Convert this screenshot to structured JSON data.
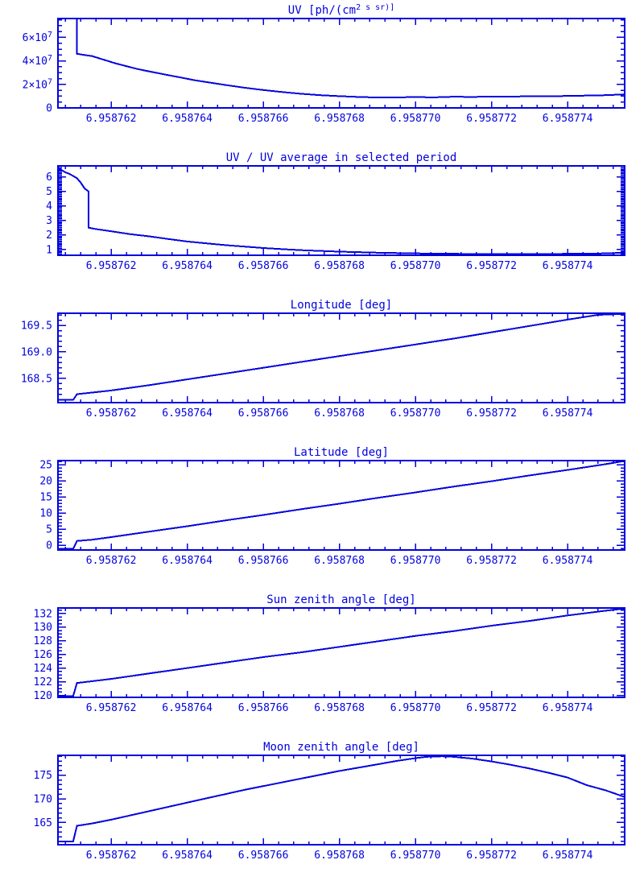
{
  "accent_color": "#0202dd",
  "background_color": "#ffffff",
  "chart_data": {
    "type": "multi-panel-line",
    "grid": false,
    "legend": "none",
    "x_axis": {
      "range": [
        6.9587606,
        6.9587755
      ],
      "minor_step": 4e-07,
      "ticks": [
        {
          "v": 6.958762,
          "label": "6.958762"
        },
        {
          "v": 6.958764,
          "label": "6.958764"
        },
        {
          "v": 6.958766,
          "label": "6.958766"
        },
        {
          "v": 6.958768,
          "label": "6.958768"
        },
        {
          "v": 6.95877,
          "label": "6.958770"
        },
        {
          "v": 6.958772,
          "label": "6.958772"
        },
        {
          "v": 6.958774,
          "label": "6.958774"
        }
      ]
    },
    "panels": [
      {
        "title": "UV [ph/(cm^2 s sr)]",
        "y_range": [
          0,
          76000000.0
        ],
        "y_minor_step": 5000000.0,
        "y_ticks": [
          {
            "v": 0,
            "label": "0"
          },
          {
            "v": 20000000.0,
            "label": "2×10^7"
          },
          {
            "v": 40000000.0,
            "label": "4×10^7"
          },
          {
            "v": 60000000.0,
            "label": "6×10^7"
          }
        ],
        "points": [
          [
            6.9587611,
            76000000.0
          ],
          [
            6.9587611,
            46000000.0
          ],
          [
            6.9587613,
            45000000.0
          ],
          [
            6.9587615,
            44000000.0
          ],
          [
            6.9587618,
            41000000.0
          ],
          [
            6.9587621,
            38000000.0
          ],
          [
            6.9587624,
            35500000.0
          ],
          [
            6.9587627,
            33000000.0
          ],
          [
            6.958763,
            31000000.0
          ],
          [
            6.9587634,
            28500000.0
          ],
          [
            6.9587638,
            26000000.0
          ],
          [
            6.9587642,
            23500000.0
          ],
          [
            6.9587646,
            21500000.0
          ],
          [
            6.958765,
            19500000.0
          ],
          [
            6.9587655,
            17200000.0
          ],
          [
            6.958766,
            15200000.0
          ],
          [
            6.9587665,
            13500000.0
          ],
          [
            6.958767,
            12000000.0
          ],
          [
            6.9587675,
            10800000.0
          ],
          [
            6.958768,
            10000000.0
          ],
          [
            6.9587685,
            9300000.0
          ],
          [
            6.958769,
            8800000.0
          ],
          [
            6.9587695,
            9000000.0
          ],
          [
            6.95877,
            9200000.0
          ],
          [
            6.9587705,
            9000000.0
          ],
          [
            6.958771,
            9500000.0
          ],
          [
            6.9587715,
            9300000.0
          ],
          [
            6.958772,
            9700000.0
          ],
          [
            6.9587725,
            9500000.0
          ],
          [
            6.958773,
            10000000.0
          ],
          [
            6.9587735,
            9800000.0
          ],
          [
            6.958774,
            10200000.0
          ],
          [
            6.9587745,
            10500000.0
          ],
          [
            6.958775,
            10800000.0
          ],
          [
            6.9587755,
            11500000.0
          ]
        ]
      },
      {
        "title": "UV / UV average in selected period",
        "y_range": [
          0.6,
          6.75
        ],
        "y_minor_step": 0.1,
        "y_ticks": [
          {
            "v": 1,
            "label": "1"
          },
          {
            "v": 2,
            "label": "2"
          },
          {
            "v": 3,
            "label": "3"
          },
          {
            "v": 4,
            "label": "4"
          },
          {
            "v": 5,
            "label": "5"
          },
          {
            "v": 6,
            "label": "6"
          }
        ],
        "points": [
          [
            6.9587606,
            6.6
          ],
          [
            6.9587607,
            6.45
          ],
          [
            6.9587608,
            6.3
          ],
          [
            6.9587609,
            6.2
          ],
          [
            6.958761,
            6.05
          ],
          [
            6.9587611,
            5.9
          ],
          [
            6.9587612,
            5.6
          ],
          [
            6.9587613,
            5.2
          ],
          [
            6.9587614,
            5.0
          ],
          [
            6.9587614,
            2.5
          ],
          [
            6.9587616,
            2.4
          ],
          [
            6.958762,
            2.25
          ],
          [
            6.9587625,
            2.05
          ],
          [
            6.958763,
            1.9
          ],
          [
            6.9587635,
            1.72
          ],
          [
            6.958764,
            1.55
          ],
          [
            6.9587645,
            1.42
          ],
          [
            6.958765,
            1.3
          ],
          [
            6.9587655,
            1.2
          ],
          [
            6.958766,
            1.1
          ],
          [
            6.9587665,
            1.02
          ],
          [
            6.958767,
            0.95
          ],
          [
            6.9587675,
            0.9
          ],
          [
            6.958768,
            0.85
          ],
          [
            6.958769,
            0.78
          ],
          [
            6.95877,
            0.73
          ],
          [
            6.958771,
            0.7
          ],
          [
            6.958772,
            0.68
          ],
          [
            6.958773,
            0.68
          ],
          [
            6.958774,
            0.7
          ],
          [
            6.958775,
            0.73
          ],
          [
            6.9587755,
            0.78
          ]
        ]
      },
      {
        "title": "Longitude [deg]",
        "y_range": [
          168.04,
          169.73
        ],
        "y_minor_step": 0.1,
        "y_ticks": [
          {
            "v": 168.5,
            "label": "168.5"
          },
          {
            "v": 169.0,
            "label": "169.0"
          },
          {
            "v": 169.5,
            "label": "169.5"
          }
        ],
        "points": [
          [
            6.9587606,
            168.09
          ],
          [
            6.958761,
            168.09
          ],
          [
            6.9587611,
            168.2
          ],
          [
            6.9587615,
            168.23
          ],
          [
            6.958762,
            168.27
          ],
          [
            6.958763,
            168.37
          ],
          [
            6.958764,
            168.48
          ],
          [
            6.958765,
            168.59
          ],
          [
            6.958766,
            168.7
          ],
          [
            6.958767,
            168.81
          ],
          [
            6.958768,
            168.92
          ],
          [
            6.958769,
            169.03
          ],
          [
            6.95877,
            169.14
          ],
          [
            6.958771,
            169.25
          ],
          [
            6.958772,
            169.37
          ],
          [
            6.958773,
            169.49
          ],
          [
            6.958774,
            169.61
          ],
          [
            6.9587748,
            169.7
          ],
          [
            6.9587755,
            169.72
          ]
        ]
      },
      {
        "title": "Latitude [deg]",
        "y_range": [
          -1.5,
          26.3
        ],
        "y_minor_step": 1,
        "y_ticks": [
          {
            "v": 0,
            "label": "0"
          },
          {
            "v": 5,
            "label": "5"
          },
          {
            "v": 10,
            "label": "10"
          },
          {
            "v": 15,
            "label": "15"
          },
          {
            "v": 20,
            "label": "20"
          },
          {
            "v": 25,
            "label": "25"
          }
        ],
        "points": [
          [
            6.9587606,
            -1.1
          ],
          [
            6.958761,
            -1.1
          ],
          [
            6.9587611,
            1.3
          ],
          [
            6.9587615,
            1.7
          ],
          [
            6.958762,
            2.5
          ],
          [
            6.958763,
            4.2
          ],
          [
            6.958764,
            5.9
          ],
          [
            6.958765,
            7.7
          ],
          [
            6.958766,
            9.4
          ],
          [
            6.958767,
            11.2
          ],
          [
            6.958768,
            12.9
          ],
          [
            6.958769,
            14.7
          ],
          [
            6.95877,
            16.4
          ],
          [
            6.958771,
            18.2
          ],
          [
            6.958772,
            19.9
          ],
          [
            6.958773,
            21.7
          ],
          [
            6.958774,
            23.4
          ],
          [
            6.958775,
            25.2
          ],
          [
            6.9587755,
            26.2
          ]
        ]
      },
      {
        "title": "Sun zenith angle [deg]",
        "y_range": [
          119.7,
          132.8
        ],
        "y_minor_step": 0.5,
        "y_ticks": [
          {
            "v": 120,
            "label": "120"
          },
          {
            "v": 122,
            "label": "122"
          },
          {
            "v": 124,
            "label": "124"
          },
          {
            "v": 126,
            "label": "126"
          },
          {
            "v": 128,
            "label": "128"
          },
          {
            "v": 130,
            "label": "130"
          },
          {
            "v": 132,
            "label": "132"
          }
        ],
        "points": [
          [
            6.9587606,
            119.9
          ],
          [
            6.958761,
            119.9
          ],
          [
            6.9587611,
            121.8
          ],
          [
            6.958762,
            122.4
          ],
          [
            6.958763,
            123.2
          ],
          [
            6.958764,
            124.0
          ],
          [
            6.958765,
            124.8
          ],
          [
            6.958766,
            125.6
          ],
          [
            6.958767,
            126.3
          ],
          [
            6.958768,
            127.1
          ],
          [
            6.958769,
            127.9
          ],
          [
            6.95877,
            128.7
          ],
          [
            6.958771,
            129.4
          ],
          [
            6.958772,
            130.2
          ],
          [
            6.958773,
            130.9
          ],
          [
            6.958774,
            131.7
          ],
          [
            6.958775,
            132.4
          ],
          [
            6.9587755,
            132.7
          ]
        ]
      },
      {
        "title": "Moon zenith angle [deg]",
        "y_range": [
          160.3,
          179.2
        ],
        "y_minor_step": 1,
        "y_ticks": [
          {
            "v": 165,
            "label": "165"
          },
          {
            "v": 170,
            "label": "170"
          },
          {
            "v": 175,
            "label": "175"
          }
        ],
        "points": [
          [
            6.9587606,
            161.0
          ],
          [
            6.958761,
            161.0
          ],
          [
            6.9587611,
            164.3
          ],
          [
            6.9587615,
            164.8
          ],
          [
            6.958762,
            165.6
          ],
          [
            6.9587625,
            166.5
          ],
          [
            6.958763,
            167.4
          ],
          [
            6.9587635,
            168.3
          ],
          [
            6.958764,
            169.2
          ],
          [
            6.9587645,
            170.1
          ],
          [
            6.958765,
            171.0
          ],
          [
            6.9587655,
            171.9
          ],
          [
            6.958766,
            172.7
          ],
          [
            6.9587665,
            173.5
          ],
          [
            6.958767,
            174.3
          ],
          [
            6.9587675,
            175.1
          ],
          [
            6.958768,
            175.9
          ],
          [
            6.9587685,
            176.6
          ],
          [
            6.958769,
            177.3
          ],
          [
            6.9587695,
            178.0
          ],
          [
            6.95877,
            178.6
          ],
          [
            6.9587703,
            178.9
          ],
          [
            6.9587707,
            179.0
          ],
          [
            6.958771,
            178.9
          ],
          [
            6.9587715,
            178.5
          ],
          [
            6.958772,
            177.9
          ],
          [
            6.9587725,
            177.2
          ],
          [
            6.958773,
            176.4
          ],
          [
            6.9587735,
            175.5
          ],
          [
            6.958774,
            174.5
          ],
          [
            6.9587745,
            172.9
          ],
          [
            6.958775,
            171.8
          ],
          [
            6.9587755,
            170.4
          ]
        ]
      }
    ]
  }
}
